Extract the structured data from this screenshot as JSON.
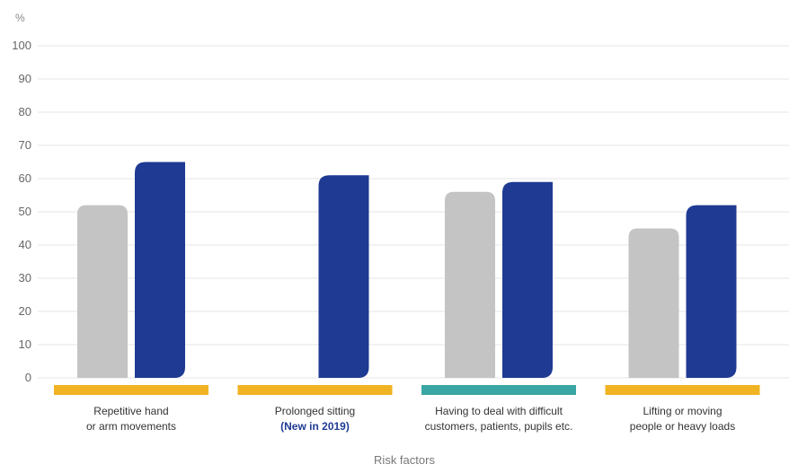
{
  "chart_data": {
    "type": "bar",
    "unit_label": "%",
    "xlabel": "Risk factors",
    "ylim": [
      0,
      100
    ],
    "yticks": [
      0,
      10,
      20,
      30,
      40,
      50,
      60,
      70,
      80,
      90,
      100
    ],
    "grid": true,
    "categories": [
      {
        "lines": [
          "Repetitive hand",
          "or arm movements"
        ],
        "accent_line": null,
        "bar_color": "#f0b323"
      },
      {
        "lines": [
          "Prolonged sitting"
        ],
        "accent_line": "(New in 2019)",
        "bar_color": "#f0b323"
      },
      {
        "lines": [
          "Having to deal with difficult",
          "customers, patients, pupils etc."
        ],
        "accent_line": null,
        "bar_color": "#3aa6a3"
      },
      {
        "lines": [
          "Lifting or moving",
          "people or heavy loads"
        ],
        "accent_line": null,
        "bar_color": "#f0b323"
      }
    ],
    "series": [
      {
        "color": "#c4c4c4",
        "values": [
          52,
          null,
          56,
          45
        ]
      },
      {
        "color": "#1f3a93",
        "values": [
          65,
          61,
          59,
          52
        ]
      }
    ]
  }
}
